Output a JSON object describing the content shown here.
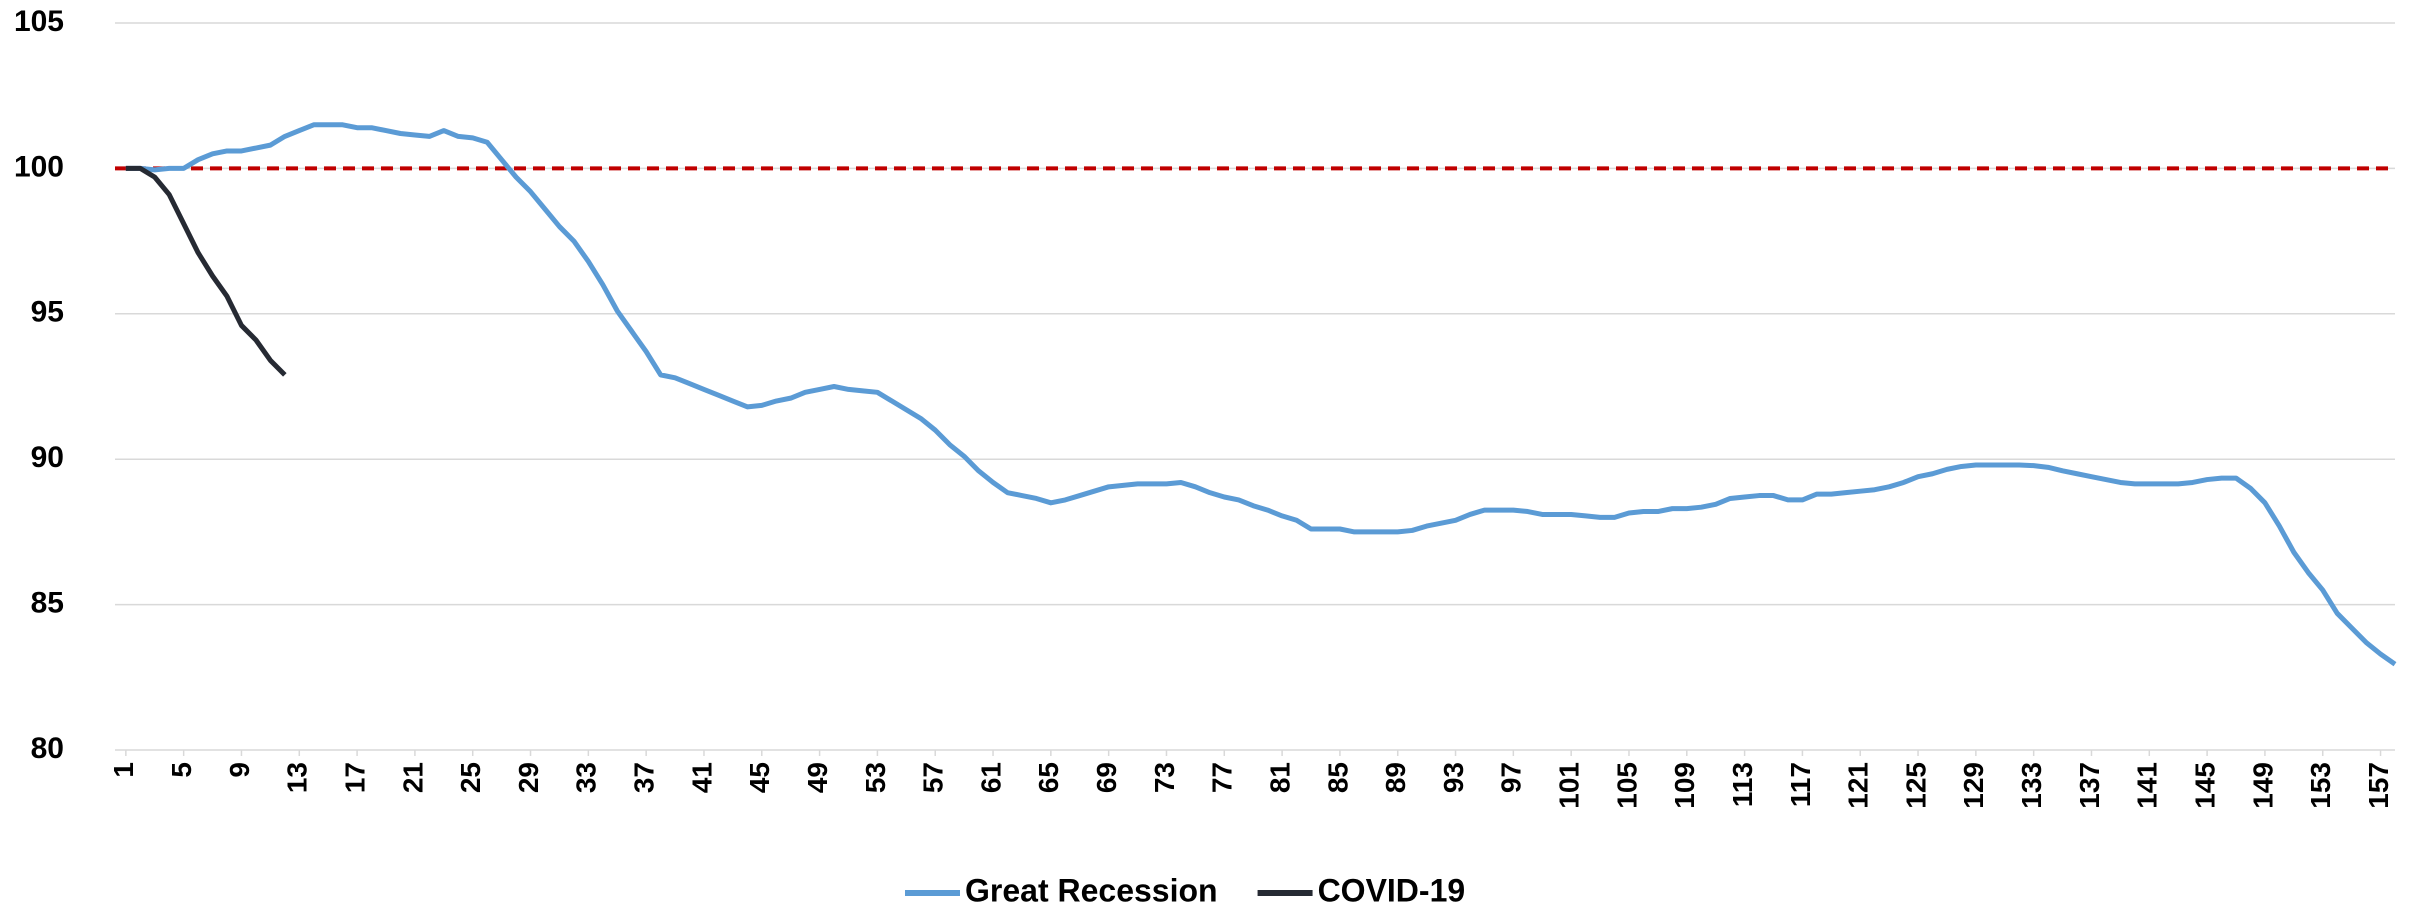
{
  "chart_data": {
    "type": "line",
    "x": [
      1,
      2,
      3,
      4,
      5,
      6,
      7,
      8,
      9,
      10,
      11,
      12,
      13,
      14,
      15,
      16,
      17,
      18,
      19,
      20,
      21,
      22,
      23,
      24,
      25,
      26,
      27,
      28,
      29,
      30,
      31,
      32,
      33,
      34,
      35,
      36,
      37,
      38,
      39,
      40,
      41,
      42,
      43,
      44,
      45,
      46,
      47,
      48,
      49,
      50,
      51,
      52,
      53,
      54,
      55,
      56,
      57,
      58,
      59,
      60,
      61,
      62,
      63,
      64,
      65,
      66,
      67,
      68,
      69,
      70,
      71,
      72,
      73,
      74,
      75,
      76,
      77,
      78,
      79,
      80,
      81,
      82,
      83,
      84,
      85,
      86,
      87,
      88,
      89,
      90,
      91,
      92,
      93,
      94,
      95,
      96,
      97,
      98,
      99,
      100,
      101,
      102,
      103,
      104,
      105,
      106,
      107,
      108,
      109,
      110,
      111,
      112,
      113,
      114,
      115,
      116,
      117,
      118,
      119,
      120,
      121,
      122,
      123,
      124,
      125,
      126,
      127,
      128,
      129,
      130,
      131,
      132,
      133,
      134,
      135,
      136,
      137,
      138,
      139,
      140,
      141,
      142,
      143,
      144,
      145,
      146,
      147,
      148,
      149,
      150,
      151,
      152,
      153,
      154,
      155,
      156,
      157,
      158
    ],
    "series": [
      {
        "name": "Great Recession",
        "color": "#5b9bd5",
        "values": [
          100,
          100,
          99.95,
          100,
          100,
          100.3,
          100.5,
          100.6,
          100.6,
          100.7,
          100.8,
          101.1,
          101.3,
          101.5,
          101.5,
          101.5,
          101.4,
          101.4,
          101.3,
          101.2,
          101.15,
          101.1,
          101.3,
          101.1,
          101.05,
          100.9,
          100.3,
          99.7,
          99.2,
          98.6,
          98.0,
          97.5,
          96.8,
          96.0,
          95.1,
          94.4,
          93.7,
          92.9,
          92.8,
          92.6,
          92.4,
          92.2,
          92.0,
          91.8,
          91.85,
          92.0,
          92.1,
          92.3,
          92.4,
          92.5,
          92.4,
          92.35,
          92.3,
          92.0,
          91.7,
          91.4,
          91.0,
          90.5,
          90.1,
          89.6,
          89.2,
          88.85,
          88.75,
          88.65,
          88.5,
          88.6,
          88.75,
          88.9,
          89.05,
          89.1,
          89.15,
          89.15,
          89.15,
          89.2,
          89.05,
          88.85,
          88.7,
          88.6,
          88.4,
          88.25,
          88.05,
          87.9,
          87.6,
          87.6,
          87.6,
          87.5,
          87.5,
          87.5,
          87.5,
          87.55,
          87.7,
          87.8,
          87.9,
          88.1,
          88.25,
          88.25,
          88.25,
          88.2,
          88.1,
          88.1,
          88.1,
          88.05,
          88.0,
          88.0,
          88.15,
          88.2,
          88.2,
          88.3,
          88.3,
          88.35,
          88.45,
          88.65,
          88.7,
          88.75,
          88.75,
          88.6,
          88.6,
          88.8,
          88.8,
          88.85,
          88.9,
          88.95,
          89.05,
          89.2,
          89.4,
          89.5,
          89.65,
          89.75,
          89.8,
          89.8,
          89.8,
          89.8,
          89.78,
          89.72,
          89.6,
          89.5,
          89.4,
          89.3,
          89.2,
          89.15,
          89.15,
          89.15,
          89.15,
          89.2,
          89.3,
          89.35,
          89.35,
          89.0,
          88.5,
          87.7,
          86.8,
          86.1,
          85.5,
          84.7,
          84.2,
          83.7,
          83.3,
          82.95
        ]
      },
      {
        "name": "COVID-19",
        "color": "#262a33",
        "values": [
          100,
          100,
          99.7,
          99.1,
          98.1,
          97.1,
          96.3,
          95.6,
          94.6,
          94.1,
          93.4,
          92.9,
          null,
          null,
          null,
          null,
          null,
          null,
          null,
          null,
          null,
          null,
          null,
          null,
          null,
          null,
          null,
          null,
          null,
          null,
          null,
          null,
          null,
          null,
          null,
          null,
          null,
          null,
          null,
          null,
          null,
          null,
          null,
          null,
          null,
          null,
          null,
          null,
          null,
          null,
          null,
          null,
          null,
          null,
          null,
          null,
          null,
          null,
          null,
          null,
          null,
          null,
          null,
          null,
          null,
          null,
          null,
          null,
          null,
          null,
          null,
          null,
          null,
          null,
          null,
          null,
          null,
          null,
          null,
          null,
          null,
          null,
          null,
          null,
          null,
          null,
          null,
          null,
          null,
          null,
          null,
          null,
          null,
          null,
          null,
          null,
          null,
          null,
          null,
          null,
          null,
          null,
          null,
          null,
          null,
          null,
          null,
          null,
          null,
          null,
          null,
          null,
          null,
          null,
          null,
          null,
          null,
          null,
          null,
          null,
          null,
          null,
          null,
          null,
          null,
          null,
          null,
          null,
          null,
          null,
          null,
          null,
          null,
          null,
          null,
          null,
          null,
          null,
          null,
          null,
          null,
          null,
          null,
          null,
          null,
          null,
          null,
          null,
          null,
          null,
          null,
          null,
          null,
          null,
          null,
          null,
          null,
          null
        ]
      }
    ],
    "xlim": [
      0.25,
      158
    ],
    "xticks": [
      1,
      5,
      9,
      13,
      17,
      21,
      25,
      29,
      33,
      37,
      41,
      45,
      49,
      53,
      57,
      61,
      65,
      69,
      73,
      77,
      81,
      85,
      89,
      93,
      97,
      101,
      105,
      109,
      113,
      117,
      121,
      125,
      129,
      133,
      137,
      141,
      145,
      149,
      153,
      157
    ],
    "ylim": [
      80,
      105
    ],
    "yticks": [
      80,
      85,
      90,
      95,
      100,
      105
    ],
    "grid": true,
    "reference_line": {
      "value": 100,
      "color": "#c00000",
      "style": "dashed"
    },
    "legend": "bottom"
  }
}
